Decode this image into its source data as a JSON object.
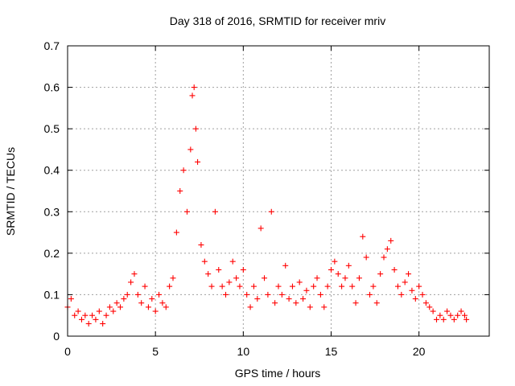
{
  "chart_data": {
    "type": "scatter",
    "title": "Day 318 of 2016, SRMTID for receiver mriv",
    "xlabel": "GPS time / hours",
    "ylabel": "SRMTID / TECUs",
    "xlim": [
      0,
      24
    ],
    "ylim": [
      0,
      0.7
    ],
    "xticks": [
      0,
      5,
      10,
      15,
      20
    ],
    "yticks": [
      0,
      0.1,
      0.2,
      0.3,
      0.4,
      0.5,
      0.6,
      0.7
    ],
    "xtick_labels": [
      "0",
      "5",
      "10",
      "15",
      "20"
    ],
    "ytick_labels": [
      "0",
      "0.1",
      "0.2",
      "0.3",
      "0.4",
      "0.5",
      "0.6",
      "0.7"
    ],
    "grid": true,
    "marker": "+",
    "marker_color": "#ff0000",
    "series": [
      {
        "name": "SRMTID",
        "x": [
          0.0,
          0.2,
          0.4,
          0.6,
          0.8,
          1.0,
          1.2,
          1.4,
          1.6,
          1.8,
          2.0,
          2.2,
          2.4,
          2.6,
          2.8,
          3.0,
          3.2,
          3.4,
          3.6,
          3.8,
          4.0,
          4.2,
          4.4,
          4.6,
          4.8,
          5.0,
          5.2,
          5.4,
          5.6,
          5.8,
          6.0,
          6.2,
          6.4,
          6.6,
          6.8,
          7.0,
          7.1,
          7.2,
          7.3,
          7.4,
          7.6,
          7.8,
          8.0,
          8.2,
          8.4,
          8.6,
          8.8,
          9.0,
          9.2,
          9.4,
          9.6,
          9.8,
          10.0,
          10.2,
          10.4,
          10.6,
          10.8,
          11.0,
          11.2,
          11.4,
          11.6,
          11.8,
          12.0,
          12.2,
          12.4,
          12.6,
          12.8,
          13.0,
          13.2,
          13.4,
          13.6,
          13.8,
          14.0,
          14.2,
          14.4,
          14.6,
          14.8,
          15.0,
          15.2,
          15.4,
          15.6,
          15.8,
          16.0,
          16.2,
          16.4,
          16.6,
          16.8,
          17.0,
          17.2,
          17.4,
          17.6,
          17.8,
          18.0,
          18.2,
          18.4,
          18.6,
          18.8,
          19.0,
          19.2,
          19.4,
          19.6,
          19.8,
          20.0,
          20.2,
          20.4,
          20.6,
          20.8,
          21.0,
          21.2,
          21.4,
          21.6,
          21.8,
          22.0,
          22.2,
          22.4,
          22.6,
          22.7
        ],
        "y": [
          0.07,
          0.09,
          0.05,
          0.06,
          0.04,
          0.05,
          0.03,
          0.05,
          0.04,
          0.06,
          0.03,
          0.05,
          0.07,
          0.06,
          0.08,
          0.07,
          0.09,
          0.1,
          0.13,
          0.15,
          0.1,
          0.08,
          0.12,
          0.07,
          0.09,
          0.06,
          0.1,
          0.08,
          0.07,
          0.12,
          0.14,
          0.25,
          0.35,
          0.4,
          0.3,
          0.45,
          0.58,
          0.6,
          0.5,
          0.42,
          0.22,
          0.18,
          0.15,
          0.12,
          0.3,
          0.16,
          0.12,
          0.1,
          0.13,
          0.18,
          0.14,
          0.12,
          0.16,
          0.1,
          0.07,
          0.12,
          0.09,
          0.26,
          0.14,
          0.1,
          0.3,
          0.08,
          0.12,
          0.1,
          0.17,
          0.09,
          0.12,
          0.08,
          0.13,
          0.09,
          0.11,
          0.07,
          0.12,
          0.14,
          0.1,
          0.07,
          0.12,
          0.16,
          0.18,
          0.15,
          0.12,
          0.14,
          0.17,
          0.12,
          0.08,
          0.14,
          0.24,
          0.19,
          0.1,
          0.12,
          0.08,
          0.15,
          0.19,
          0.21,
          0.23,
          0.16,
          0.12,
          0.1,
          0.13,
          0.15,
          0.11,
          0.09,
          0.12,
          0.1,
          0.08,
          0.07,
          0.06,
          0.04,
          0.05,
          0.04,
          0.06,
          0.05,
          0.04,
          0.05,
          0.06,
          0.05,
          0.04
        ]
      }
    ]
  }
}
